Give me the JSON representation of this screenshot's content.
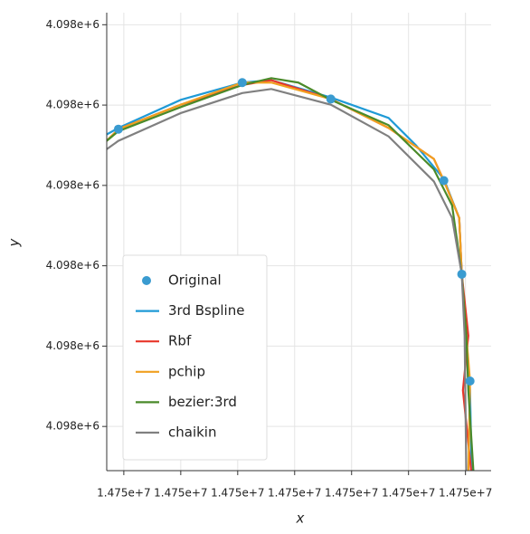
{
  "chart_data": {
    "type": "line",
    "xlabel": "x",
    "ylabel": "y",
    "grid": true,
    "legend": "lower left",
    "xlim": [
      14749994.0,
      14750129.0
    ],
    "ylim": [
      4097989.0,
      4098103.0
    ],
    "xticks": [
      {
        "value": 14750000,
        "label": "1.475e+7"
      },
      {
        "value": 14750020,
        "label": "1.475e+7"
      },
      {
        "value": 14750040,
        "label": "1.475e+7"
      },
      {
        "value": 14750060,
        "label": "1.475e+7"
      },
      {
        "value": 14750080,
        "label": "1.475e+7"
      },
      {
        "value": 14750100,
        "label": "1.475e+7"
      },
      {
        "value": 14750120,
        "label": "1.475e+7"
      }
    ],
    "yticks": [
      {
        "value": 4098000,
        "label": "4.098e+6"
      },
      {
        "value": 4098020,
        "label": "4.098e+6"
      },
      {
        "value": 4098040,
        "label": "4.098e+6"
      },
      {
        "value": 4098060,
        "label": "4.098e+6"
      },
      {
        "value": 4098080,
        "label": "4.098e+6"
      },
      {
        "value": 4098100,
        "label": "4.098e+6"
      }
    ],
    "series": [
      {
        "name": "Original",
        "mode": "markers",
        "color": "#3a9bd0",
        "x": [
          14749998.1,
          14750041.6,
          14750072.7,
          14750112.4,
          14750118.7,
          14750121.6
        ],
        "values": [
          4098074.0,
          4098085.6,
          4098081.5,
          4098061.2,
          4098037.9,
          4098011.3
        ]
      },
      {
        "name": "3rd Bspline",
        "mode": "lines",
        "color": "#1f9ad6",
        "x": [
          14749994.0,
          14749998.1,
          14750020.0,
          14750041.6,
          14750051.8,
          14750072.7,
          14750093.0,
          14750102.6,
          14750112.4,
          14750117.8,
          14750118.7,
          14750120.3,
          14750121.6,
          14750122.2
        ],
        "values": [
          4098072.7,
          4098074.3,
          4098081.3,
          4098085.6,
          4098086.2,
          4098081.9,
          4098076.8,
          4098070.0,
          4098061.6,
          4098051.9,
          4098037.9,
          4098022.6,
          4098009.0,
          4097987.6
        ]
      },
      {
        "name": "Rbf",
        "mode": "lines",
        "color": "#e8362a",
        "x": [
          14749994.0,
          14749998.1,
          14750020.0,
          14750041.6,
          14750051.8,
          14750072.7,
          14750093.0,
          14750108.9,
          14750112.4,
          14750117.8,
          14750118.7,
          14750121.0,
          14750119.1,
          14750122.2
        ],
        "values": [
          4098071.1,
          4098074.0,
          4098080.1,
          4098085.0,
          4098086.2,
          4098081.5,
          4098074.3,
          4098066.6,
          4098061.2,
          4098051.9,
          4098037.9,
          4098022.6,
          4098009.0,
          4097987.6
        ]
      },
      {
        "name": "pchip",
        "mode": "lines",
        "color": "#f0a020",
        "x": [
          14749994.0,
          14749998.1,
          14750020.0,
          14750041.6,
          14750051.8,
          14750072.7,
          14750093.0,
          14750108.9,
          14750112.4,
          14750117.8,
          14750118.7,
          14750120.3,
          14750121.6,
          14750121.0
        ],
        "values": [
          4098071.1,
          4098074.0,
          4098080.1,
          4098085.6,
          4098085.6,
          4098081.5,
          4098074.3,
          4098066.6,
          4098061.2,
          4098051.9,
          4098037.9,
          4098022.6,
          4098011.3,
          4097987.6
        ]
      },
      {
        "name": "bezier:3rd",
        "mode": "lines",
        "color": "#4a8a2a",
        "x": [
          14749994.0,
          14749998.1,
          14750020.0,
          14750041.6,
          14750051.8,
          14750061.3,
          14750072.7,
          14750093.0,
          14750108.9,
          14750115.3,
          14750118.7,
          14750120.3,
          14750121.0,
          14750122.9
        ],
        "values": [
          4098071.1,
          4098073.5,
          4098079.5,
          4098085.0,
          4098086.7,
          4098085.6,
          4098081.3,
          4098075.0,
          4098064.0,
          4098055.0,
          4098037.9,
          4098022.6,
          4098009.0,
          4097987.6
        ]
      },
      {
        "name": "chaikin",
        "mode": "lines",
        "color": "#808080",
        "x": [
          14749994.0,
          14749998.1,
          14750020.0,
          14750041.6,
          14750051.8,
          14750072.7,
          14750093.0,
          14750108.9,
          14750115.3,
          14750118.7,
          14750119.7,
          14750120.3
        ],
        "values": [
          4098069.0,
          4098071.1,
          4098078.0,
          4098083.0,
          4098084.0,
          4098080.1,
          4098072.2,
          4098061.0,
          4098051.9,
          4098037.9,
          4098022.6,
          4097987.6
        ]
      }
    ]
  }
}
